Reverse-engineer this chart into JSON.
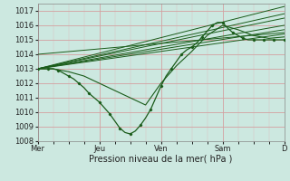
{
  "background_color": "#cce8e0",
  "grid_major_color": "#ffb0b0",
  "grid_minor_color": "#e8c8c8",
  "line_color": "#1a5c1a",
  "xlabel": "Pression niveau de la mer( hPa )",
  "ylim": [
    1008,
    1017.5
  ],
  "yticks": [
    1008,
    1009,
    1010,
    1011,
    1012,
    1013,
    1014,
    1015,
    1016,
    1017
  ],
  "day_labels": [
    "Mer",
    "Jeu",
    "Ven",
    "Sam",
    "D"
  ],
  "day_positions": [
    0,
    24,
    48,
    72,
    96
  ],
  "xlim": [
    0,
    96
  ],
  "forecast_lines": [
    {
      "x": [
        0,
        96
      ],
      "y": [
        1013.0,
        1017.3
      ]
    },
    {
      "x": [
        0,
        96
      ],
      "y": [
        1013.0,
        1016.8
      ]
    },
    {
      "x": [
        0,
        96
      ],
      "y": [
        1013.0,
        1016.5
      ]
    },
    {
      "x": [
        0,
        96
      ],
      "y": [
        1013.0,
        1016.0
      ]
    },
    {
      "x": [
        0,
        96
      ],
      "y": [
        1013.0,
        1015.7
      ]
    },
    {
      "x": [
        0,
        96
      ],
      "y": [
        1013.0,
        1015.4
      ]
    },
    {
      "x": [
        0,
        96
      ],
      "y": [
        1014.0,
        1015.5
      ]
    }
  ],
  "detailed_line_x": [
    0,
    2,
    4,
    6,
    8,
    10,
    12,
    14,
    16,
    18,
    20,
    22,
    24,
    26,
    28,
    30,
    32,
    34,
    36,
    38,
    40,
    42,
    44,
    46,
    48,
    50,
    52,
    54,
    56,
    58,
    60,
    62,
    64,
    66,
    68,
    70,
    72,
    74,
    76,
    78,
    80,
    82,
    84,
    86,
    88,
    90,
    92,
    94,
    96
  ],
  "detailed_line_y": [
    1013.0,
    1013.0,
    1013.0,
    1013.0,
    1012.9,
    1012.7,
    1012.5,
    1012.3,
    1012.0,
    1011.7,
    1011.3,
    1011.0,
    1010.7,
    1010.3,
    1009.9,
    1009.4,
    1008.9,
    1008.6,
    1008.5,
    1008.7,
    1009.1,
    1009.6,
    1010.2,
    1011.0,
    1011.8,
    1012.5,
    1013.0,
    1013.5,
    1014.0,
    1014.3,
    1014.5,
    1014.8,
    1015.2,
    1015.6,
    1016.0,
    1016.2,
    1016.2,
    1015.8,
    1015.5,
    1015.3,
    1015.1,
    1015.0,
    1015.0,
    1015.0,
    1015.0,
    1015.0,
    1015.0,
    1015.0,
    1015.0
  ],
  "extra_line_x": [
    0,
    6,
    12,
    18,
    24,
    30,
    36,
    42,
    48,
    54,
    60,
    66,
    72,
    78,
    84,
    90,
    96
  ],
  "extra_line_y": [
    1013.0,
    1013.0,
    1012.8,
    1012.5,
    1012.0,
    1011.5,
    1011.0,
    1010.5,
    1012.0,
    1013.2,
    1014.2,
    1015.3,
    1016.0,
    1015.7,
    1015.3,
    1015.1,
    1015.2
  ]
}
